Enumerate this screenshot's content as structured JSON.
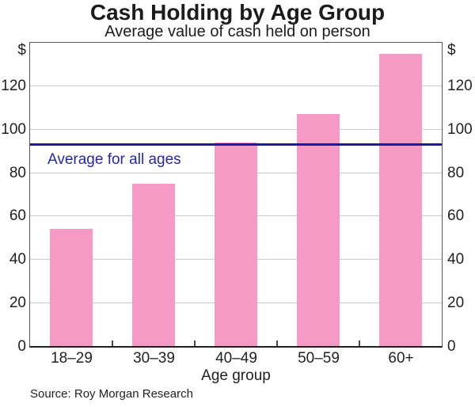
{
  "chart_data": {
    "type": "bar",
    "title": "Cash Holding by Age Group",
    "subtitle": "Average value of cash held on person",
    "xlabel": "Age group",
    "unit_label": "$",
    "categories": [
      "18–29",
      "30–39",
      "40–49",
      "50–59",
      "60+"
    ],
    "values": [
      54,
      75,
      94,
      107,
      135
    ],
    "average_line": {
      "value": 93,
      "label": "Average for all ages"
    },
    "ylim": [
      0,
      140
    ],
    "yticks": [
      0,
      20,
      40,
      60,
      80,
      100,
      120
    ],
    "grid": true,
    "legend_position": "none",
    "bar_color": "#f49ac4",
    "line_color": "#1c1c96",
    "annotation_color": "#2828a3",
    "source": "Source: Roy Morgan Research"
  }
}
